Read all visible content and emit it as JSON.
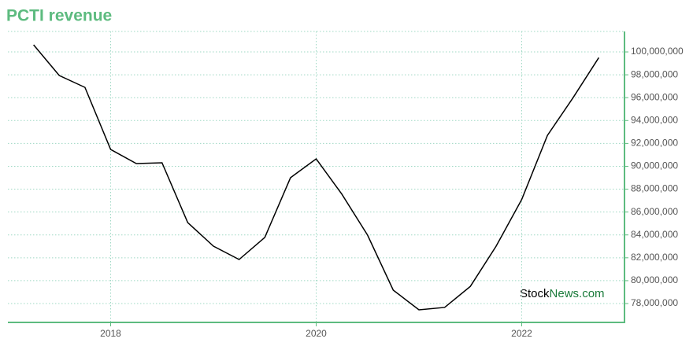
{
  "chart_data": {
    "type": "line",
    "title": "PCTI revenue",
    "watermark": [
      "Stock",
      "News.com"
    ],
    "x": [
      2017.25,
      2017.5,
      2017.75,
      2018,
      2018.25,
      2018.5,
      2018.75,
      2019,
      2019.25,
      2019.5,
      2019.75,
      2020,
      2020.25,
      2020.5,
      2020.75,
      2021,
      2021.25,
      2021.5,
      2021.75,
      2022,
      2022.25,
      2022.5,
      2022.75
    ],
    "series": [
      {
        "name": "PCTI revenue",
        "color": "#000000",
        "values": [
          100620000,
          97940000,
          96900000,
          91470000,
          90240000,
          90310000,
          85080000,
          83020000,
          81850000,
          83780000,
          89000000,
          90650000,
          87560000,
          83980000,
          79170000,
          77450000,
          77660000,
          79500000,
          83000000,
          87100000,
          92700000,
          96000000,
          99500000
        ]
      }
    ],
    "xlim": [
      2017,
      2023
    ],
    "xticks": [
      2018,
      2020,
      2022
    ],
    "ylim": [
      76350000,
      101790000
    ],
    "yticks": [
      {
        "value": 78000000,
        "label": "78,000,000"
      },
      {
        "value": 80000000,
        "label": "80,000,000"
      },
      {
        "value": 82000000,
        "label": "82,000,000"
      },
      {
        "value": 84000000,
        "label": "84,000,000"
      },
      {
        "value": 86000000,
        "label": "86,000,000"
      },
      {
        "value": 88000000,
        "label": "88,000,000"
      },
      {
        "value": 90000000,
        "label": "90,000,000"
      },
      {
        "value": 92000000,
        "label": "92,000,000"
      },
      {
        "value": 94000000,
        "label": "94,000,000"
      },
      {
        "value": 96000000,
        "label": "96,000,000"
      },
      {
        "value": 98000000,
        "label": "98,000,000"
      },
      {
        "value": 100000000,
        "label": "100,000,000"
      }
    ],
    "grid": true,
    "axis_color": "#5dbb7f"
  }
}
